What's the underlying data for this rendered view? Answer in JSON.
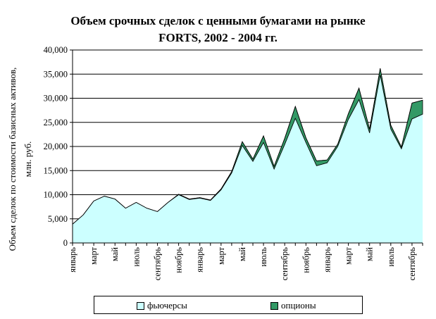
{
  "chart_data": {
    "type": "area",
    "title_lines": [
      "Объем срочных сделок с ценными бумагами на рынке",
      "FORTS, 2002 - 2004 гг."
    ],
    "ylabel_lines": [
      "Объем сделок по стоимости базисных активов,",
      "млн. руб."
    ],
    "xlabel": "",
    "ylim": [
      0,
      40000
    ],
    "yticks": [
      "0",
      "5,000",
      "10,000",
      "15,000",
      "20,000",
      "25,000",
      "30,000",
      "35,000",
      "40,000"
    ],
    "x_tick_labels": [
      "январь",
      "март",
      "май",
      "июль",
      "сентябрь",
      "ноябрь",
      "январь",
      "март",
      "май",
      "июль",
      "сентябрь",
      "ноябрь",
      "январь",
      "март",
      "май",
      "июль",
      "сентябрь"
    ],
    "grid": "horizontal",
    "legend_position": "bottom",
    "stacked": true,
    "series": [
      {
        "name": "фьючерсы",
        "color": "#ccffff",
        "values": [
          3900,
          5800,
          8700,
          9700,
          9100,
          7200,
          8400,
          7200,
          6500,
          8400,
          10000,
          9000,
          9300,
          8800,
          11000,
          14500,
          20200,
          16900,
          20800,
          15300,
          20400,
          25800,
          20800,
          16000,
          16600,
          20000,
          25600,
          29700,
          22800,
          34800,
          23600,
          19500,
          25700,
          26700
        ]
      },
      {
        "name": "опционы",
        "color": "#339966",
        "values": [
          0,
          0,
          0,
          0,
          0,
          0,
          0,
          0,
          0,
          0,
          100,
          100,
          100,
          100,
          200,
          300,
          800,
          500,
          1400,
          600,
          1300,
          2500,
          1000,
          1000,
          600,
          500,
          1200,
          2400,
          800,
          1400,
          800,
          400,
          3300,
          2900
        ]
      }
    ]
  }
}
